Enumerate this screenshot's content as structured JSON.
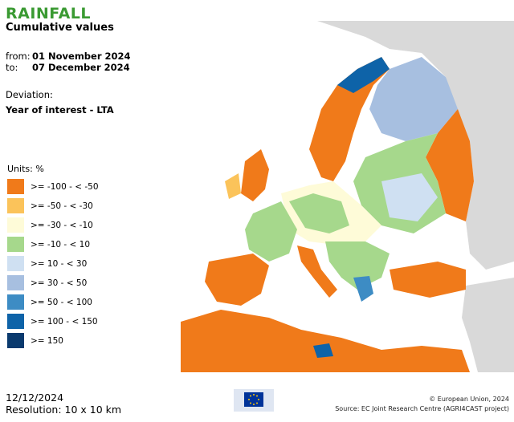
{
  "header": {
    "title": "RAINFALL",
    "subtitle": "Cumulative values"
  },
  "period": {
    "from_label": "from:",
    "from_value": "01 November 2024",
    "to_label": "to:",
    "to_value": "07 December 2024"
  },
  "deviation": {
    "label": "Deviation:",
    "value": "Year of interest - LTA"
  },
  "legend": {
    "units": "Units: %",
    "classes": [
      {
        "label": ">= -100 - < -50",
        "color": "#f07a1a"
      },
      {
        "label": ">= -50 - < -30",
        "color": "#fbc35a"
      },
      {
        "label": ">= -30 - < -10",
        "color": "#fefbd8"
      },
      {
        "label": ">= -10 - < 10",
        "color": "#a6d88c"
      },
      {
        "label": ">= 10 - < 30",
        "color": "#cfe0f2"
      },
      {
        "label": ">= 30 - < 50",
        "color": "#a7bfe0"
      },
      {
        "label": ">= 50 - < 100",
        "color": "#3d8cc4"
      },
      {
        "label": ">= 100 - < 150",
        "color": "#0e63a8"
      },
      {
        "label": ">= 150",
        "color": "#0a3a6e"
      }
    ]
  },
  "footer": {
    "date": "12/12/2024",
    "resolution": "Resolution: 10 x 10 km",
    "copyright": "© European Union, 2024",
    "source": "Source: EC Joint Research Centre (AGRI4CAST project)",
    "logo_text": "European Commission"
  },
  "map_colors": {
    "sea": "#ffffff",
    "non_data_land": "#d9d9d9",
    "border": "#555555"
  }
}
